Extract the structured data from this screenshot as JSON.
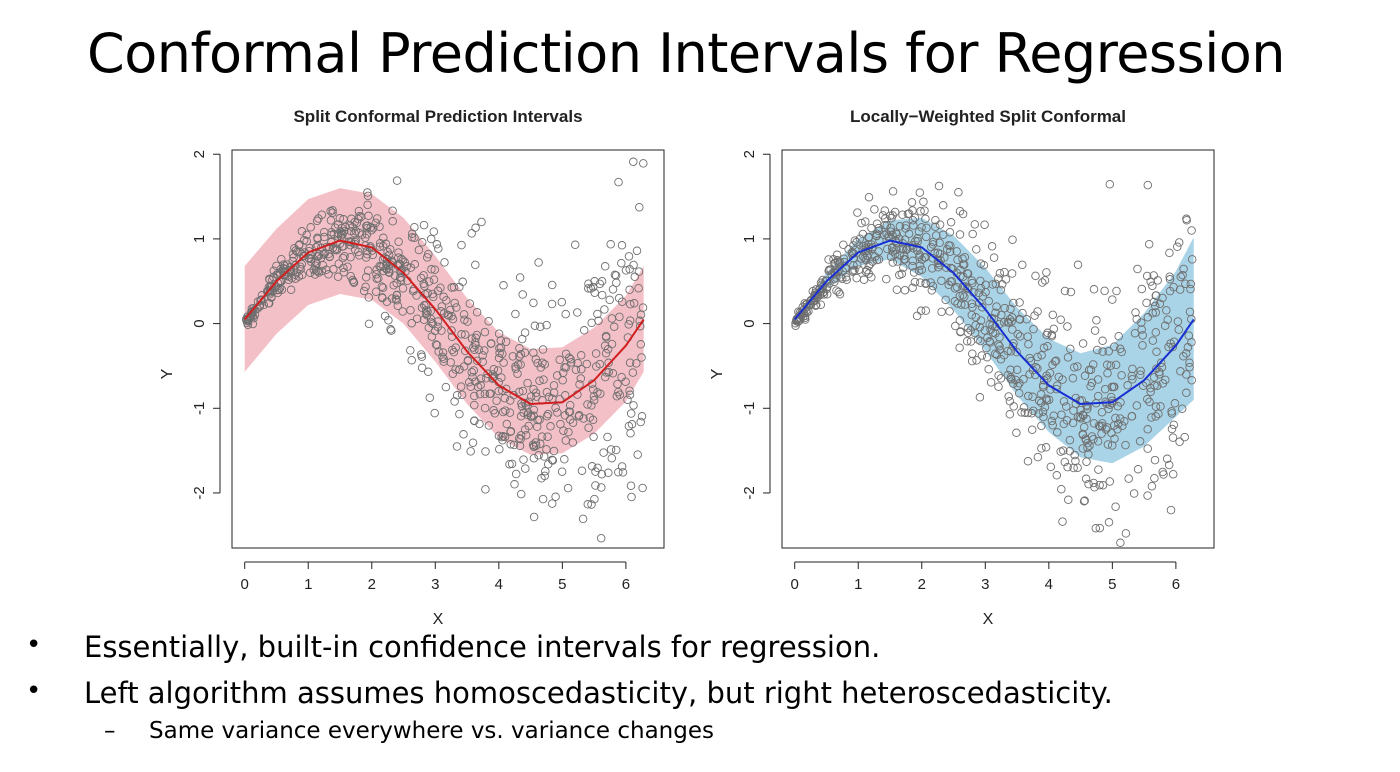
{
  "slide": {
    "title": "Conformal Prediction Intervals for Regression",
    "bullets": [
      "Essentially, built-in confidence intervals for regression.",
      "Left algorithm assumes homoscedasticity, but right heteroscedasticity."
    ],
    "sub_bullets": [
      "Same variance everywhere vs. variance changes"
    ],
    "bullet_marker": "•",
    "sub_marker": "–"
  },
  "chart_data": [
    {
      "type": "scatter",
      "title": "Split Conformal Prediction Intervals",
      "xlabel": "X",
      "ylabel": "Y",
      "xlim": [
        -0.2,
        6.6
      ],
      "ylim": [
        -2.65,
        2.05
      ],
      "xticks": [
        0,
        1,
        2,
        3,
        4,
        5,
        6
      ],
      "yticks": [
        -2,
        -1,
        0,
        1,
        2
      ],
      "grid": false,
      "band": {
        "x": [
          0,
          0.5,
          1,
          1.5,
          2,
          2.5,
          3,
          3.5,
          4,
          4.5,
          5,
          5.5,
          6,
          6.28
        ],
        "lower": [
          -0.57,
          -0.12,
          0.22,
          0.35,
          0.28,
          0.0,
          -0.45,
          -0.95,
          -1.35,
          -1.55,
          -1.53,
          -1.3,
          -0.92,
          -0.57
        ],
        "upper": [
          0.68,
          1.12,
          1.47,
          1.6,
          1.53,
          1.25,
          0.8,
          0.3,
          -0.1,
          -0.3,
          -0.28,
          -0.05,
          0.33,
          0.68
        ],
        "color": "#f4c0c8"
      },
      "fit": {
        "x": [
          0,
          0.5,
          1,
          1.5,
          2,
          2.5,
          3,
          3.5,
          4,
          4.5,
          5,
          5.5,
          6,
          6.28
        ],
        "y": [
          0.05,
          0.5,
          0.84,
          0.98,
          0.9,
          0.6,
          0.17,
          -0.33,
          -0.73,
          -0.95,
          -0.93,
          -0.67,
          -0.26,
          0.05
        ],
        "color": "#d11f1f"
      },
      "points": {
        "generator": "y = sin(x) + noise, noise sd grows with x",
        "n": 800,
        "x_range": [
          0,
          6.28
        ],
        "sd_base": 0.03,
        "sd_slope": 0.14,
        "color": "#6f6f6f"
      }
    },
    {
      "type": "scatter",
      "title": "Locally−Weighted Split Conformal",
      "xlabel": "X",
      "ylabel": "Y",
      "xlim": [
        -0.2,
        6.6
      ],
      "ylim": [
        -2.65,
        2.05
      ],
      "xticks": [
        0,
        1,
        2,
        3,
        4,
        5,
        6
      ],
      "yticks": [
        -2,
        -1,
        0,
        1,
        2
      ],
      "grid": false,
      "band": {
        "x": [
          0,
          0.5,
          1,
          1.5,
          2,
          2.5,
          3,
          3.5,
          4,
          4.5,
          5,
          5.5,
          6,
          6.28
        ],
        "lower": [
          0.0,
          0.42,
          0.68,
          0.76,
          0.55,
          0.16,
          -0.32,
          -0.85,
          -1.28,
          -1.58,
          -1.65,
          -1.45,
          -1.1,
          -0.9
        ],
        "upper": [
          0.0,
          0.6,
          1.0,
          1.22,
          1.25,
          1.04,
          0.66,
          0.19,
          -0.18,
          -0.35,
          -0.25,
          0.12,
          0.62,
          1.02
        ],
        "color": "#a9d3e6"
      },
      "fit": {
        "x": [
          0,
          0.5,
          1,
          1.5,
          2,
          2.5,
          3,
          3.5,
          4,
          4.5,
          5,
          5.5,
          6,
          6.28
        ],
        "y": [
          0.05,
          0.5,
          0.84,
          0.98,
          0.9,
          0.6,
          0.17,
          -0.33,
          -0.73,
          -0.95,
          -0.93,
          -0.67,
          -0.26,
          0.05
        ],
        "color": "#1a2fd1"
      },
      "points": {
        "generator": "y = sin(x) + noise, noise sd grows with x",
        "n": 800,
        "x_range": [
          0,
          6.28
        ],
        "sd_base": 0.03,
        "sd_slope": 0.14,
        "color": "#6f6f6f"
      }
    }
  ]
}
